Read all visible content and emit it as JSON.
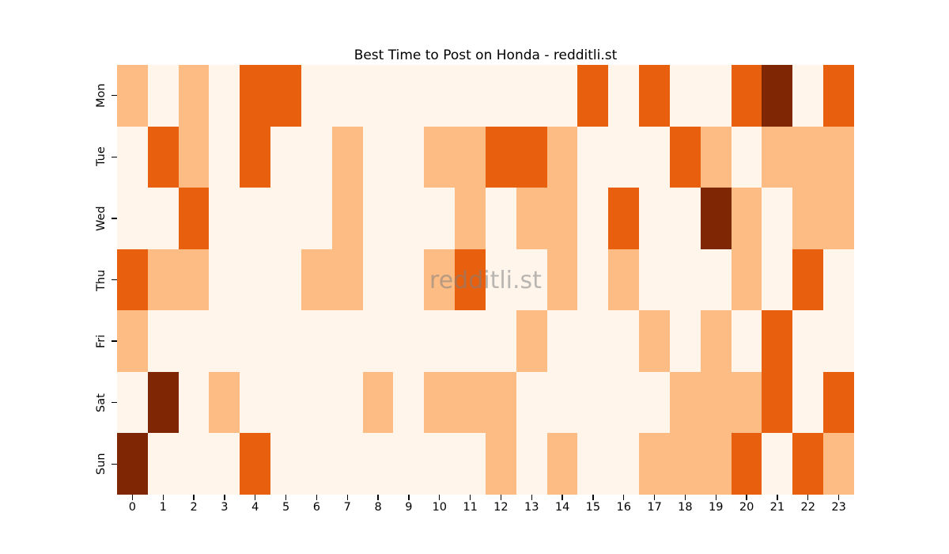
{
  "title": "Best Time to Post on Honda - redditli.st",
  "watermark": "redditli.st",
  "chart_data": {
    "type": "heatmap",
    "title": "Best Time to Post on Honda - redditli.st",
    "xlabel": "",
    "ylabel": "",
    "x_labels": [
      "0",
      "1",
      "2",
      "3",
      "4",
      "5",
      "6",
      "7",
      "8",
      "9",
      "10",
      "11",
      "12",
      "13",
      "14",
      "15",
      "16",
      "17",
      "18",
      "19",
      "20",
      "21",
      "22",
      "23"
    ],
    "y_labels": [
      "Mon",
      "Tue",
      "Wed",
      "Thu",
      "Fri",
      "Sat",
      "Sun"
    ],
    "legend": "none",
    "grid": false,
    "value_levels": [
      0,
      1,
      2,
      3
    ],
    "palette": [
      "#fff5eb",
      "#fdbc84",
      "#e85f0e",
      "#7f2704"
    ],
    "series": [
      {
        "name": "Mon",
        "values": [
          1,
          0,
          1,
          0,
          2,
          2,
          0,
          0,
          0,
          0,
          0,
          0,
          0,
          0,
          0,
          2,
          0,
          2,
          0,
          0,
          2,
          3,
          0,
          2
        ]
      },
      {
        "name": "Tue",
        "values": [
          0,
          2,
          1,
          0,
          2,
          0,
          0,
          1,
          0,
          0,
          1,
          1,
          2,
          2,
          1,
          0,
          0,
          0,
          2,
          1,
          0,
          1,
          1,
          1
        ]
      },
      {
        "name": "Wed",
        "values": [
          0,
          0,
          2,
          0,
          0,
          0,
          0,
          1,
          0,
          0,
          0,
          1,
          0,
          1,
          1,
          0,
          2,
          0,
          0,
          3,
          1,
          0,
          1,
          1
        ]
      },
      {
        "name": "Thu",
        "values": [
          2,
          1,
          1,
          0,
          0,
          0,
          1,
          1,
          0,
          0,
          1,
          2,
          0,
          0,
          1,
          0,
          1,
          0,
          0,
          0,
          1,
          0,
          2,
          0
        ]
      },
      {
        "name": "Fri",
        "values": [
          1,
          0,
          0,
          0,
          0,
          0,
          0,
          0,
          0,
          0,
          0,
          0,
          0,
          1,
          0,
          0,
          0,
          1,
          0,
          1,
          0,
          2,
          0,
          0
        ]
      },
      {
        "name": "Sat",
        "values": [
          0,
          3,
          0,
          1,
          0,
          0,
          0,
          0,
          1,
          0,
          1,
          1,
          1,
          0,
          0,
          0,
          0,
          0,
          1,
          1,
          1,
          2,
          0,
          2
        ]
      },
      {
        "name": "Sun",
        "values": [
          3,
          0,
          0,
          0,
          2,
          0,
          0,
          0,
          0,
          0,
          0,
          0,
          1,
          0,
          1,
          0,
          0,
          1,
          1,
          1,
          2,
          0,
          2,
          1
        ]
      }
    ]
  }
}
